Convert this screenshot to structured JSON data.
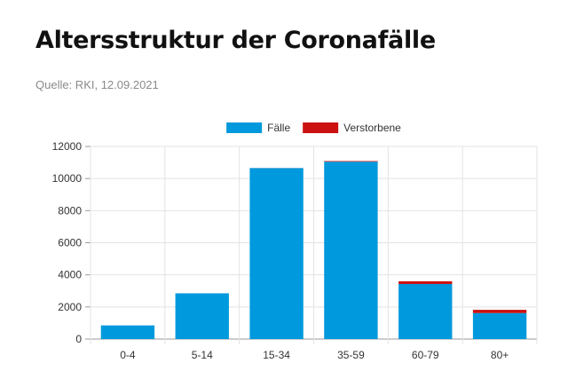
{
  "header": {
    "title": "Altersstruktur der Coronafälle",
    "source": "Quelle: RKI, 12.09.2021"
  },
  "chart_data": {
    "type": "bar",
    "stacked": true,
    "categories": [
      "0-4",
      "5-14",
      "15-34",
      "35-59",
      "60-79",
      "80+"
    ],
    "series": [
      {
        "name": "Fälle",
        "color": "#0099dd",
        "values": [
          850,
          2850,
          10650,
          11050,
          3430,
          1620
        ]
      },
      {
        "name": "Verstorbene",
        "color": "#cc1111",
        "values": [
          0,
          0,
          5,
          40,
          170,
          200
        ]
      }
    ],
    "ylim": [
      0,
      12000
    ],
    "yticks": [
      0,
      2000,
      4000,
      6000,
      8000,
      10000,
      12000
    ],
    "grid": true,
    "legend": "top-center"
  }
}
